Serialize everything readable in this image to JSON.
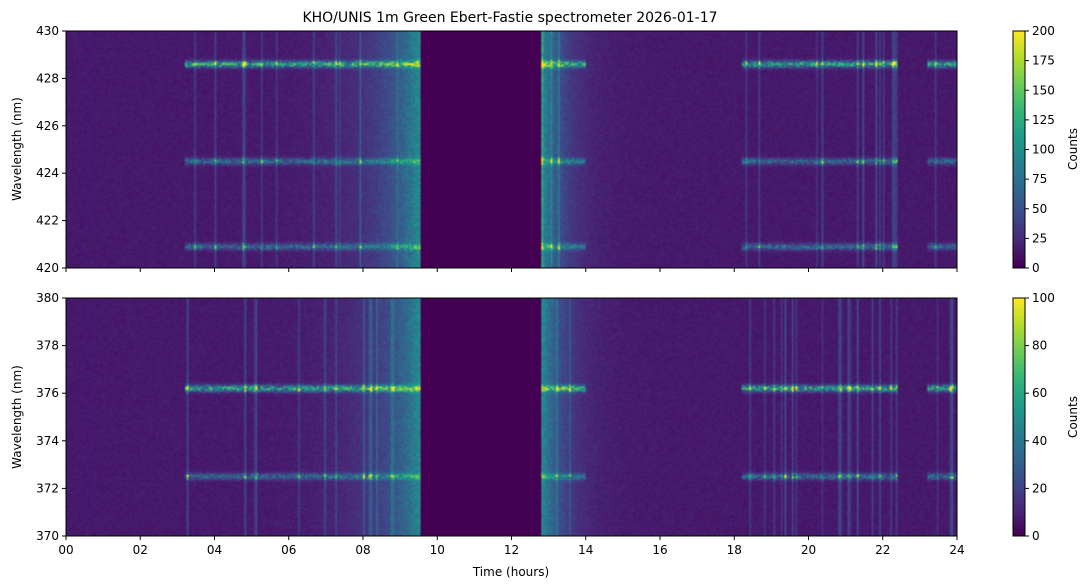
{
  "figure": {
    "title": "KHO/UNIS 1m Green Ebert-Fastie spectrometer 2026-01-17"
  },
  "chart_data": [
    {
      "type": "heatmap",
      "title": "KHO/UNIS 1m Green Ebert-Fastie spectrometer 2026-01-17",
      "xlabel": "",
      "ylabel": "Wavelength (nm)",
      "xlim": [
        0,
        24
      ],
      "ylim": [
        420,
        430
      ],
      "x_ticks": [
        "00",
        "02",
        "04",
        "06",
        "08",
        "10",
        "12",
        "14",
        "16",
        "18",
        "20",
        "22",
        "24"
      ],
      "y_ticks": [
        "420",
        "422",
        "424",
        "426",
        "428",
        "430"
      ],
      "colorbar": {
        "label": "Counts",
        "range": [
          0,
          200
        ],
        "ticks": [
          "0",
          "25",
          "50",
          "75",
          "100",
          "125",
          "150",
          "175",
          "200"
        ],
        "colormap": "viridis"
      },
      "emission_lines_nm": [
        428.6,
        424.5,
        420.9
      ],
      "no_data_interval_hours": [
        9.55,
        12.8
      ],
      "bright_intervals_hours": [
        [
          3.2,
          9.55
        ],
        [
          12.8,
          14.0
        ],
        [
          18.2,
          22.4
        ],
        [
          23.2,
          24.0
        ]
      ],
      "peak_counts": 200
    },
    {
      "type": "heatmap",
      "xlabel": "Time (hours)",
      "ylabel": "Wavelength (nm)",
      "xlim": [
        0,
        24
      ],
      "ylim": [
        370,
        380
      ],
      "x_ticks": [
        "00",
        "02",
        "04",
        "06",
        "08",
        "10",
        "12",
        "14",
        "16",
        "18",
        "20",
        "22",
        "24"
      ],
      "y_ticks": [
        "370",
        "372",
        "374",
        "376",
        "378",
        "380"
      ],
      "colorbar": {
        "label": "Counts",
        "range": [
          0,
          100
        ],
        "ticks": [
          "0",
          "20",
          "40",
          "60",
          "80",
          "100"
        ],
        "colormap": "viridis"
      },
      "emission_lines_nm": [
        376.2,
        372.5
      ],
      "no_data_interval_hours": [
        9.55,
        12.8
      ],
      "bright_intervals_hours": [
        [
          3.2,
          9.55
        ],
        [
          12.8,
          14.0
        ],
        [
          18.2,
          22.4
        ],
        [
          23.2,
          24.0
        ]
      ],
      "peak_counts": 100
    }
  ]
}
